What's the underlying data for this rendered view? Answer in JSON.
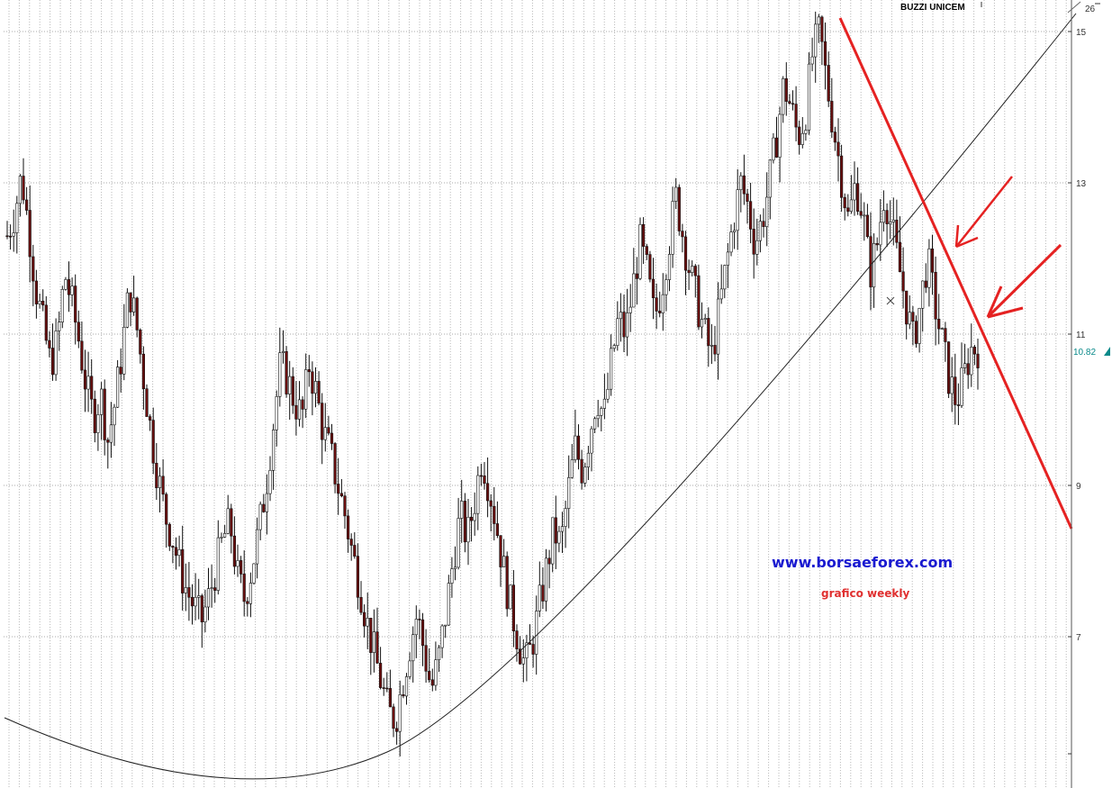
{
  "chart_data": {
    "type": "candlestick",
    "title": "BUZZI UNICEM",
    "annotation_site": "www.borsaeforex.com",
    "annotation_period": "grafico weekly",
    "y_axis": {
      "position": "right",
      "ticks": [
        9,
        11,
        13,
        15,
        7
      ],
      "tick_labels": [
        "9",
        "11",
        "13",
        "15",
        "7"
      ],
      "range": [
        5.6,
        15.4
      ]
    },
    "last_price_label": "10.82",
    "last_price": 10.82,
    "gridlines": true,
    "close_series": [
      12.3,
      12.6,
      13.1,
      12.4,
      11.6,
      11.1,
      10.6,
      10.9,
      11.8,
      11.4,
      10.9,
      10.3,
      9.9,
      10.2,
      9.6,
      10.1,
      10.8,
      11.6,
      11.1,
      10.4,
      9.7,
      9.1,
      8.6,
      8.3,
      7.9,
      7.6,
      7.4,
      7.2,
      7.5,
      7.9,
      8.3,
      8.5,
      7.8,
      7.5,
      7.9,
      8.4,
      9.0,
      9.8,
      10.6,
      10.4,
      10.1,
      9.9,
      10.6,
      10.2,
      9.7,
      9.4,
      9.0,
      8.6,
      8.1,
      7.7,
      7.2,
      6.8,
      6.4,
      6.0,
      5.9,
      6.4,
      6.9,
      7.3,
      6.8,
      6.3,
      6.7,
      7.3,
      8.0,
      8.6,
      8.3,
      8.8,
      9.4,
      9.0,
      8.5,
      7.9,
      7.4,
      7.0,
      6.6,
      6.9,
      7.4,
      7.9,
      8.4,
      8.2,
      8.9,
      9.5,
      9.2,
      9.7,
      10.2,
      9.9,
      10.6,
      11.2,
      11.0,
      11.6,
      12.2,
      11.8,
      11.2,
      11.6,
      12.2,
      12.8,
      12.3,
      11.8,
      11.4,
      11.0,
      10.7,
      11.3,
      11.9,
      12.5,
      13.0,
      12.7,
      12.2,
      12.5,
      13.0,
      13.6,
      14.3,
      14.0,
      13.6,
      13.9,
      14.7,
      15.0,
      14.3,
      13.7,
      13.1,
      12.5,
      13.0,
      12.6,
      11.8,
      12.2,
      12.9,
      12.4,
      11.9,
      11.4,
      10.9,
      11.4,
      12.0,
      11.4,
      10.9,
      10.4,
      10.1,
      10.4,
      10.8,
      10.82
    ]
  }
}
